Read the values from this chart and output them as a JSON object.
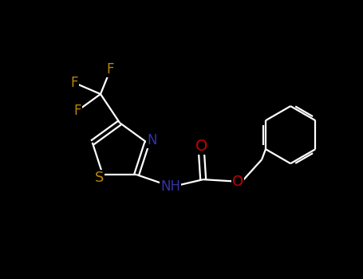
{
  "bg_color": "#000000",
  "bond_color": "#ffffff",
  "N_color": "#3333aa",
  "S_color": "#b8860b",
  "O_color": "#cc0000",
  "F_color": "#b8860b",
  "font_size": 11,
  "fig_width": 4.55,
  "fig_height": 3.5,
  "dpi": 100,
  "xlim": [
    0,
    9.1
  ],
  "ylim": [
    0,
    7.0
  ]
}
